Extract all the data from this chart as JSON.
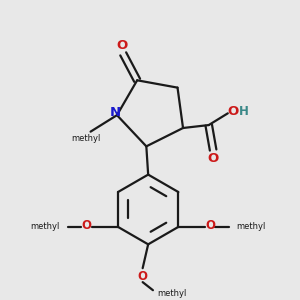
{
  "bg_color": "#e8e8e8",
  "bond_color": "#1a1a1a",
  "N_color": "#1a1acc",
  "O_color": "#cc1a1a",
  "H_color": "#3a8888",
  "lw": 1.6,
  "fs": 8.5,
  "xlim": [
    -3.8,
    4.2
  ],
  "ylim": [
    -4.8,
    3.2
  ]
}
